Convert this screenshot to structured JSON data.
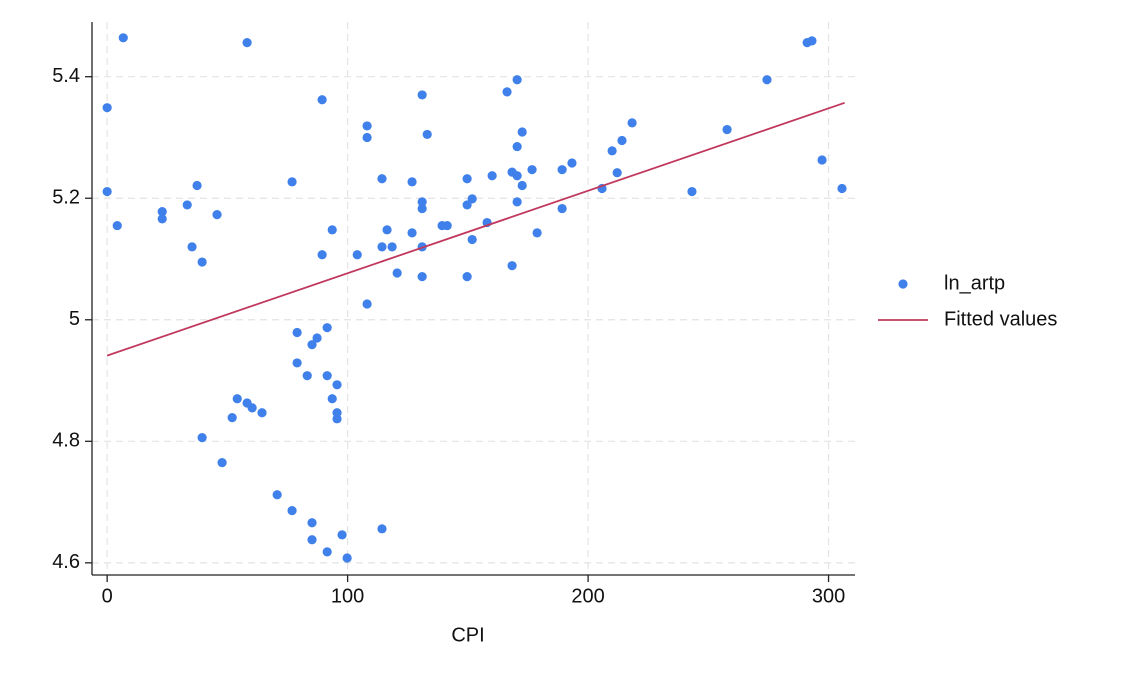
{
  "chart_data": {
    "type": "scatter",
    "xlabel": "CPI",
    "xlim": [
      -6.3,
      311
    ],
    "ylim": [
      4.58,
      5.49
    ],
    "xticks": [
      0,
      100,
      200,
      300
    ],
    "yticks": [
      4.6,
      4.8,
      5,
      5.2,
      5.4
    ],
    "grid": true,
    "legend": "right",
    "series": [
      {
        "name": "ln_artp",
        "type": "scatter",
        "color": "#3f80ea",
        "x": [
          0,
          0,
          4.2,
          6.7,
          22.9,
          22.9,
          33.3,
          37.4,
          35.3,
          39.5,
          45.7,
          58.2,
          39.5,
          47.8,
          54.1,
          52.0,
          58.2,
          60.3,
          64.4,
          70.7,
          76.9,
          76.9,
          79.0,
          79.0,
          83.2,
          85.2,
          87.3,
          85.2,
          85.2,
          89.4,
          89.4,
          91.5,
          91.5,
          91.5,
          93.6,
          93.6,
          95.6,
          95.6,
          95.6,
          97.7,
          99.8,
          104.0,
          108.1,
          108.1,
          108.1,
          114.3,
          114.3,
          114.3,
          116.4,
          118.5,
          120.6,
          126.8,
          126.8,
          131.0,
          131.0,
          131.0,
          131.0,
          131.0,
          133.1,
          139.3,
          141.4,
          149.7,
          149.7,
          151.8,
          151.8,
          149.7,
          158.0,
          160.1,
          166.3,
          168.4,
          168.4,
          170.5,
          170.5,
          170.5,
          170.5,
          172.6,
          172.6,
          176.7,
          178.8,
          189.2,
          189.2,
          193.3,
          205.8,
          210.0,
          212.1,
          214.1,
          218.3,
          243.2,
          257.8,
          274.4,
          291.1,
          293.1,
          297.3,
          305.6
        ],
        "values": [
          5.349,
          5.211,
          5.155,
          5.464,
          5.178,
          5.166,
          5.189,
          5.221,
          5.12,
          5.095,
          5.173,
          5.456,
          4.806,
          4.765,
          4.87,
          4.839,
          4.863,
          4.855,
          4.847,
          4.712,
          5.227,
          4.686,
          4.979,
          4.929,
          4.908,
          4.959,
          4.97,
          4.666,
          4.638,
          5.362,
          5.107,
          4.987,
          4.908,
          4.618,
          5.148,
          4.87,
          4.893,
          4.847,
          4.837,
          4.646,
          4.608,
          5.107,
          5.319,
          5.3,
          5.026,
          5.232,
          5.12,
          4.656,
          5.148,
          5.12,
          5.077,
          5.227,
          5.143,
          5.37,
          5.194,
          5.183,
          5.12,
          5.071,
          5.305,
          5.155,
          5.155,
          5.232,
          5.189,
          5.199,
          5.132,
          5.071,
          5.16,
          5.237,
          5.375,
          5.243,
          5.089,
          5.395,
          5.285,
          5.237,
          5.194,
          5.309,
          5.221,
          5.247,
          5.143,
          5.247,
          5.183,
          5.258,
          5.216,
          5.278,
          5.242,
          5.295,
          5.324,
          5.211,
          5.313,
          5.395,
          5.456,
          5.459,
          5.263,
          5.216
        ]
      },
      {
        "name": "Fitted values",
        "type": "line",
        "color": "#c1385d",
        "x": [
          0,
          306.7
        ],
        "values": [
          4.941,
          5.357
        ]
      }
    ]
  }
}
